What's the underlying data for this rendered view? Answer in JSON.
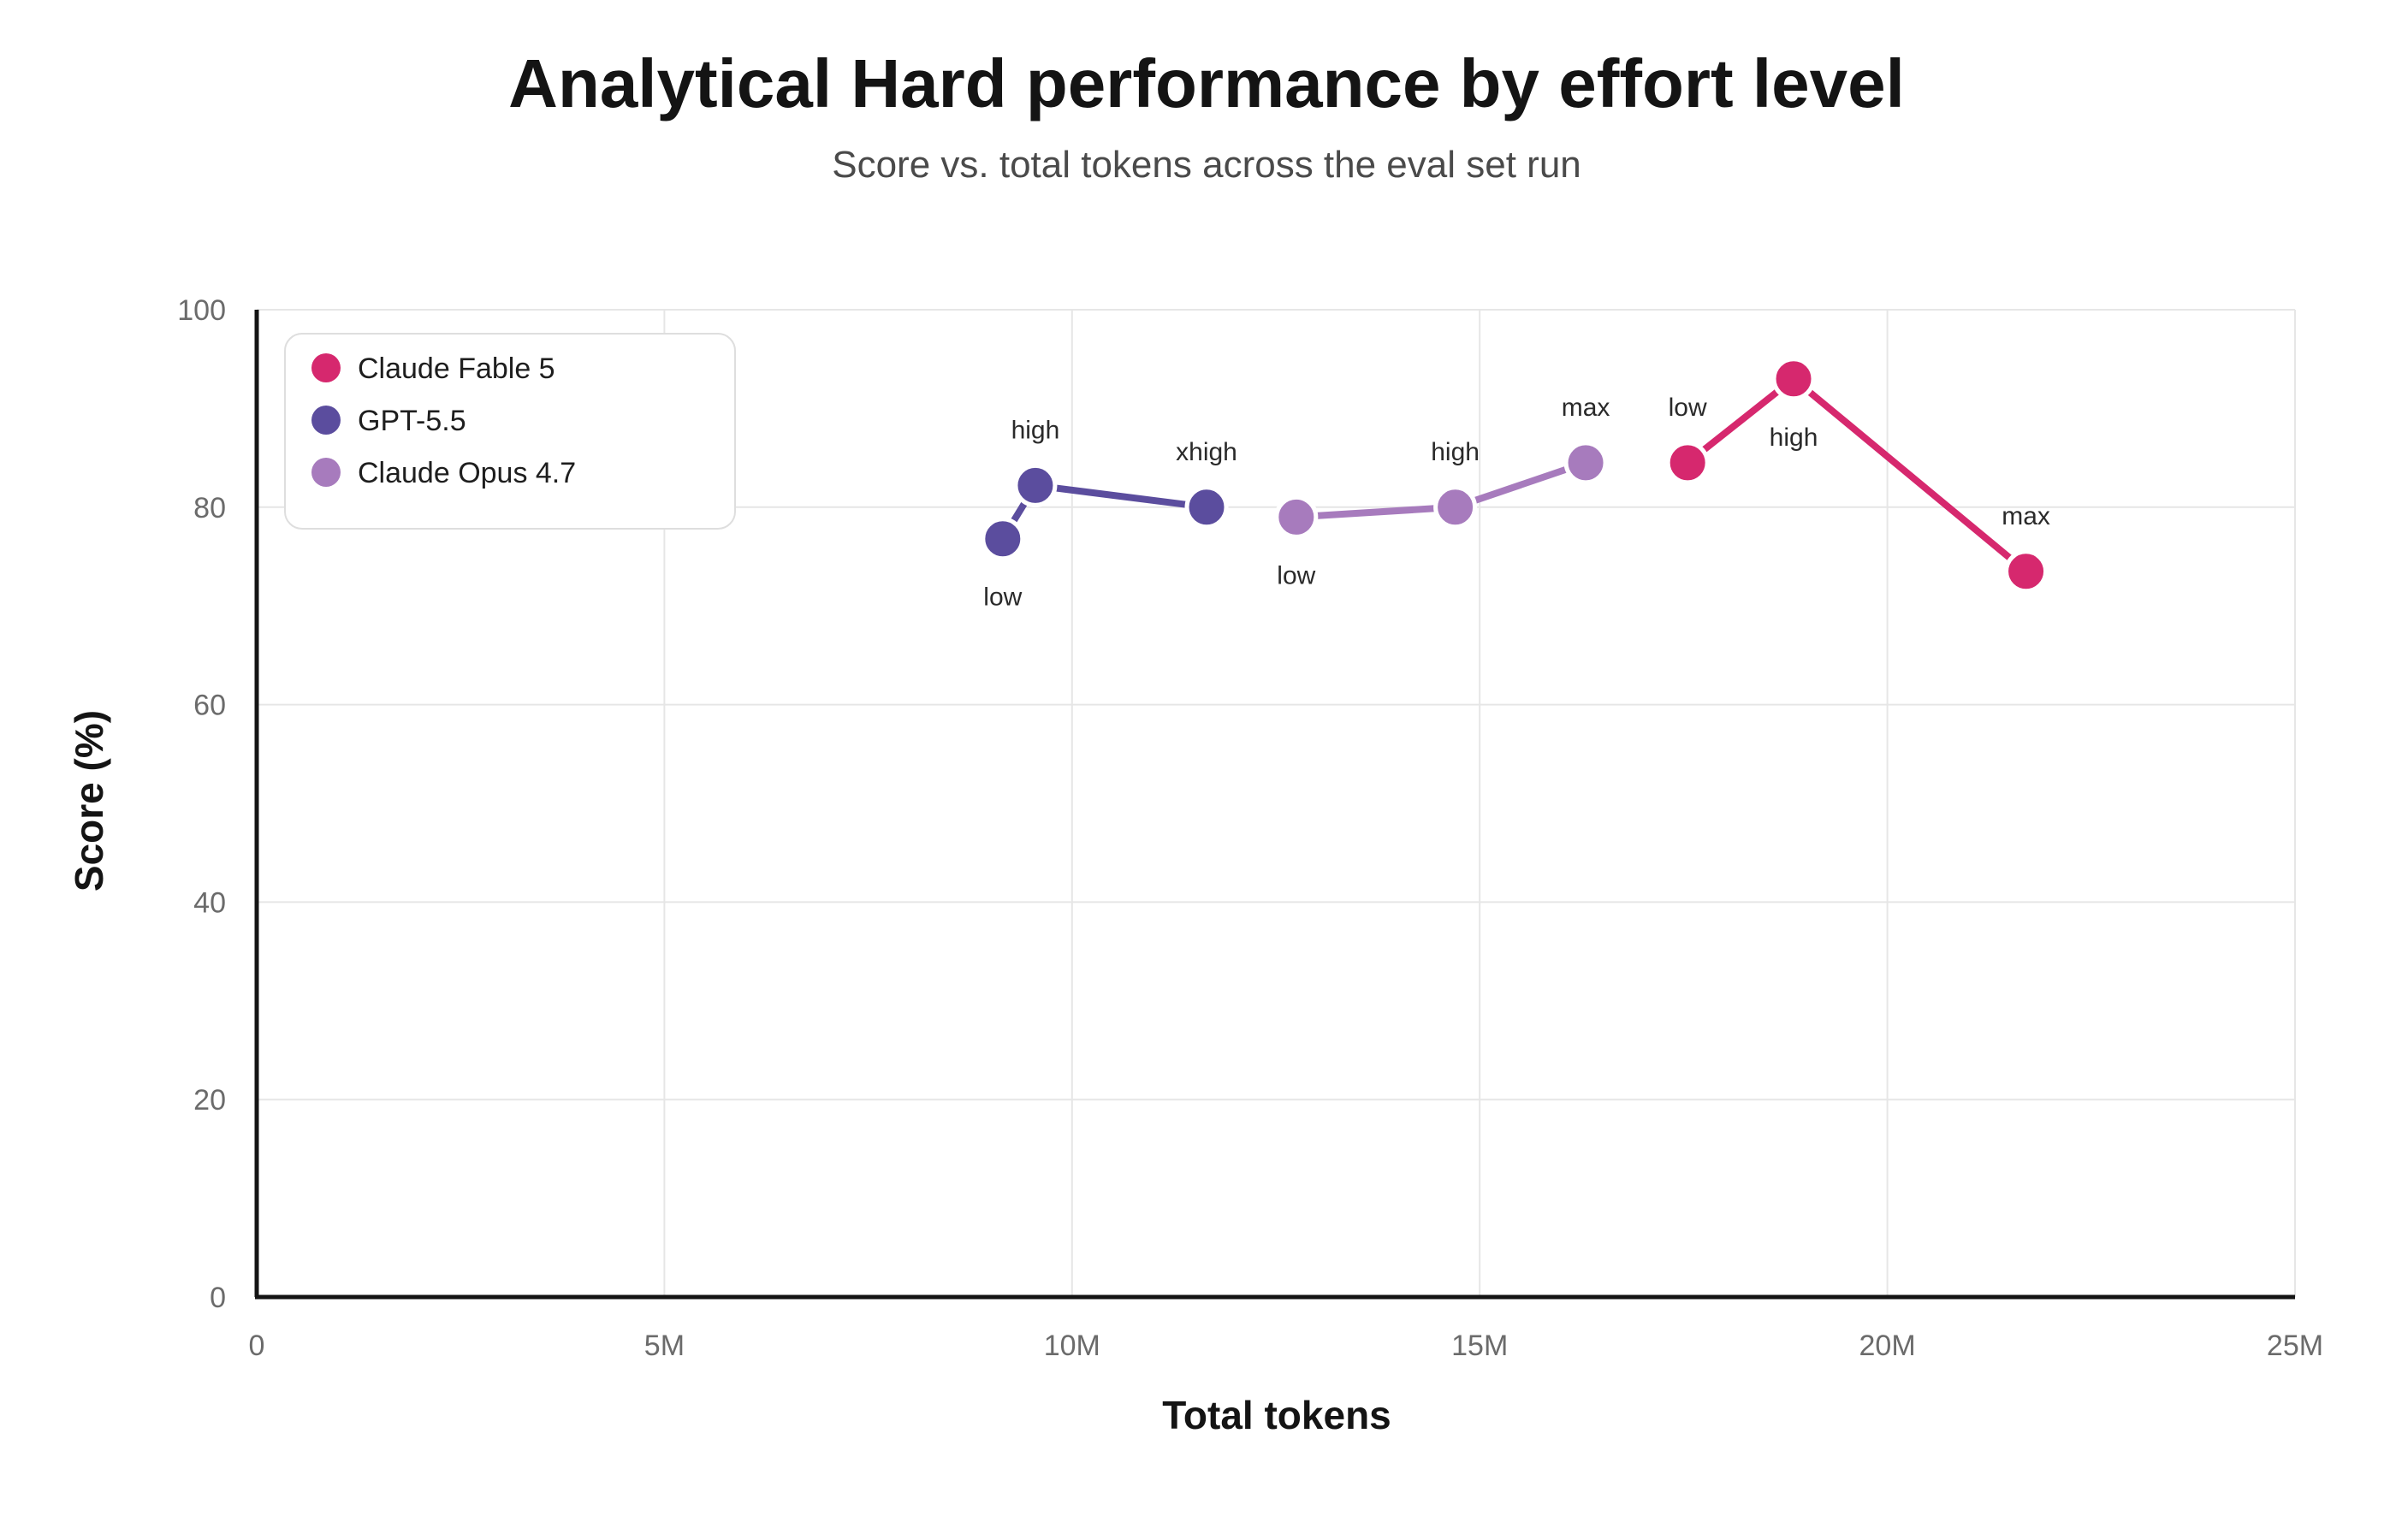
{
  "chart_data": {
    "type": "line",
    "title": "Analytical Hard performance by effort level",
    "subtitle": "Score vs. total tokens across the eval set run",
    "xlabel": "Total tokens",
    "ylabel": "Score (%)",
    "xlim": [
      0,
      25000000
    ],
    "ylim": [
      0,
      100
    ],
    "x_ticks": [
      {
        "value": 0,
        "label": "0"
      },
      {
        "value": 5000000,
        "label": "5M"
      },
      {
        "value": 10000000,
        "label": "10M"
      },
      {
        "value": 15000000,
        "label": "15M"
      },
      {
        "value": 20000000,
        "label": "20M"
      },
      {
        "value": 25000000,
        "label": "25M"
      }
    ],
    "y_ticks": [
      {
        "value": 0,
        "label": "0"
      },
      {
        "value": 20,
        "label": "20"
      },
      {
        "value": 40,
        "label": "40"
      },
      {
        "value": 60,
        "label": "60"
      },
      {
        "value": 80,
        "label": "80"
      },
      {
        "value": 100,
        "label": "100"
      }
    ],
    "grid": true,
    "legend_position": "top-left",
    "series": [
      {
        "name": "Claude Fable 5",
        "color": "#d6286e",
        "points": [
          {
            "x": 17550000,
            "y": 84.5,
            "label": "low",
            "label_pos": "above"
          },
          {
            "x": 18850000,
            "y": 93.0,
            "label": "high",
            "label_pos": "below"
          },
          {
            "x": 21700000,
            "y": 73.5,
            "label": "max",
            "label_pos": "above"
          }
        ]
      },
      {
        "name": "GPT-5.5",
        "color": "#5b4d9e",
        "points": [
          {
            "x": 9150000,
            "y": 76.8,
            "label": "low",
            "label_pos": "below"
          },
          {
            "x": 9550000,
            "y": 82.2,
            "label": "high",
            "label_pos": "above"
          },
          {
            "x": 11650000,
            "y": 80.0,
            "label": "xhigh",
            "label_pos": "above"
          }
        ]
      },
      {
        "name": "Claude Opus 4.7",
        "color": "#a77bbd",
        "points": [
          {
            "x": 12750000,
            "y": 79.0,
            "label": "low",
            "label_pos": "below"
          },
          {
            "x": 14700000,
            "y": 80.0,
            "label": "high",
            "label_pos": "above"
          },
          {
            "x": 16300000,
            "y": 84.5,
            "label": "max",
            "label_pos": "above"
          }
        ]
      }
    ]
  }
}
